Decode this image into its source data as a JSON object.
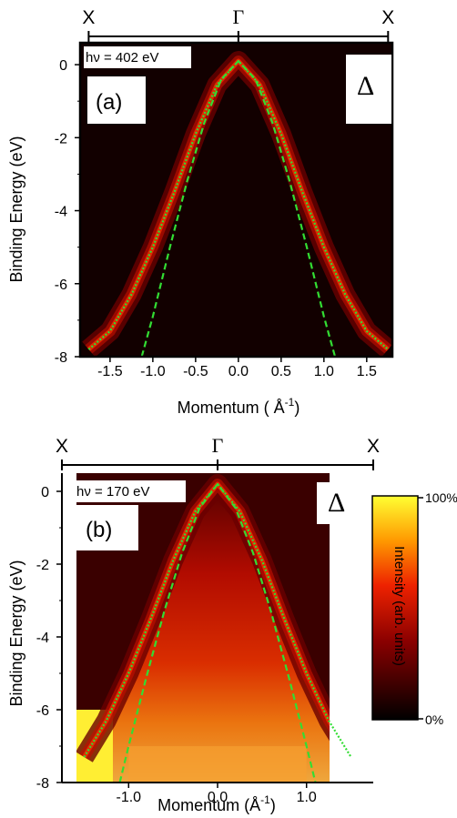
{
  "chart_data": [
    {
      "type": "heatmap",
      "panel_label": "(a)",
      "photon_energy_label": "hν = 402 eV",
      "direction_label": "Δ",
      "top_axis": {
        "labels": [
          "X",
          "Γ",
          "X"
        ],
        "positions": [
          -1.75,
          0.0,
          1.75
        ]
      },
      "xlabel": "Momentum ( Å",
      "xlabel_sup": "-1",
      "xlabel_end": ")",
      "ylabel": "Binding Energy (eV)",
      "xlim": [
        -1.85,
        1.8
      ],
      "ylim": [
        -8.0,
        0.6
      ],
      "x_ticks": [
        -1.5,
        -1.0,
        -0.5,
        0.0,
        0.5,
        1.0,
        1.5
      ],
      "x_tick_labels": [
        "-1.5",
        "-1.0",
        "-0.5",
        "0.0",
        "0.5",
        "1.0",
        "1.5"
      ],
      "y_ticks": [
        0,
        -2,
        -4,
        -6,
        -8
      ],
      "y_tick_labels": [
        "0",
        "-2",
        "-4",
        "-6",
        "-8"
      ],
      "colormap": "black-red-yellow",
      "series": [
        {
          "style": "dotted",
          "color": "#33dd33",
          "x": [
            -1.75,
            -1.5,
            -1.25,
            -1.0,
            -0.75,
            -0.5,
            -0.25,
            0.0,
            0.25,
            0.5,
            0.75,
            1.0,
            1.25,
            1.5,
            1.75
          ],
          "y": [
            -7.8,
            -7.3,
            -6.3,
            -5.0,
            -3.5,
            -1.9,
            -0.55,
            0.1,
            -0.55,
            -1.9,
            -3.5,
            -5.0,
            -6.3,
            -7.3,
            -7.8
          ]
        },
        {
          "style": "dashed",
          "color": "#33dd33",
          "x": [
            -1.13,
            -1.0,
            -0.8,
            -0.6,
            -0.4,
            -0.2,
            0.0,
            0.2,
            0.4,
            0.6,
            0.8,
            1.0,
            1.13
          ],
          "y": [
            -8.0,
            -6.9,
            -5.0,
            -3.2,
            -1.6,
            -0.4,
            0.1,
            -0.4,
            -1.6,
            -3.2,
            -5.0,
            -6.9,
            -8.0
          ]
        }
      ]
    },
    {
      "type": "heatmap",
      "panel_label": "(b)",
      "photon_energy_label": "hν = 170 eV",
      "direction_label": "Δ",
      "top_axis": {
        "labels": [
          "X",
          "Γ",
          "X"
        ],
        "positions": [
          -1.75,
          0.0,
          1.75
        ]
      },
      "xlabel": "Momentum (Å",
      "xlabel_sup": "-1",
      "xlabel_end": ")",
      "ylabel": "Binding Energy (eV)",
      "xlim": [
        -1.75,
        1.75
      ],
      "ylim": [
        -8.0,
        0.5
      ],
      "x_ticks": [
        -1.0,
        0.0,
        1.0
      ],
      "x_tick_labels": [
        "-1.0",
        "0.0",
        "1.0"
      ],
      "y_ticks": [
        0,
        -2,
        -4,
        -6,
        -8
      ],
      "y_tick_labels": [
        "0",
        "-2",
        "-4",
        "-6",
        "-8"
      ],
      "colormap": "black-red-yellow",
      "colorbar": {
        "title": "Intensity (arb. units)",
        "max_label": "100%",
        "min_label": "0%"
      },
      "series": [
        {
          "style": "dotted",
          "color": "#33dd33",
          "x": [
            -1.5,
            -1.25,
            -1.0,
            -0.75,
            -0.5,
            -0.25,
            0.0,
            0.25,
            0.5,
            0.75,
            1.0,
            1.25,
            1.5
          ],
          "y": [
            -7.3,
            -6.3,
            -5.0,
            -3.5,
            -1.9,
            -0.55,
            0.2,
            -0.55,
            -1.9,
            -3.5,
            -5.0,
            -6.3,
            -7.3
          ]
        },
        {
          "style": "dashed",
          "color": "#33dd33",
          "x": [
            -1.1,
            -1.0,
            -0.8,
            -0.6,
            -0.4,
            -0.2,
            0.0,
            0.2,
            0.4,
            0.6,
            0.8,
            1.0,
            1.1
          ],
          "y": [
            -8.0,
            -7.0,
            -5.1,
            -3.3,
            -1.7,
            -0.45,
            0.2,
            -0.45,
            -1.7,
            -3.3,
            -5.1,
            -7.0,
            -8.0
          ]
        }
      ]
    }
  ]
}
